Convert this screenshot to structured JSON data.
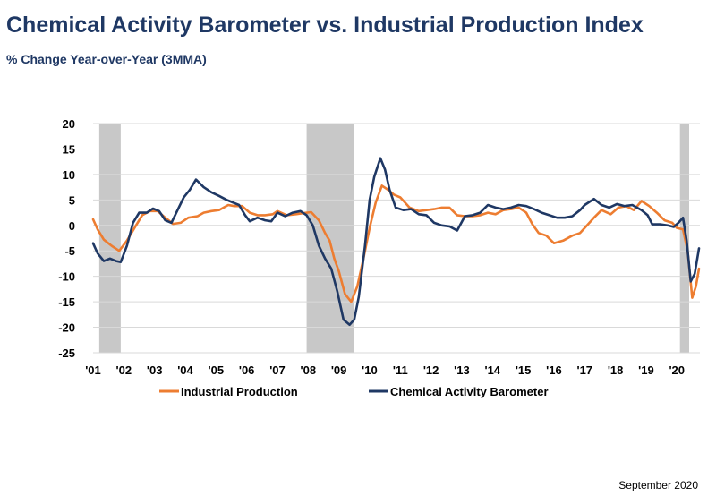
{
  "title": "Chemical Activity Barometer vs. Industrial Production Index",
  "subtitle": "% Change Year-over-Year (3MMA)",
  "footer": "September 2020",
  "colors": {
    "industrial_production": "#ed7d31",
    "cab": "#1f3864",
    "recession": "#c8c8c8",
    "grid": "#d9d9d9"
  },
  "chart_data": {
    "type": "line",
    "title": "Chemical Activity Barometer vs. Industrial Production Index",
    "subtitle": "% Change Year-over-Year (3MMA)",
    "ylim": [
      -25,
      20
    ],
    "xlim": [
      2001.0,
      2020.75
    ],
    "yticks": [
      20,
      15,
      10,
      5,
      0,
      -5,
      -10,
      -15,
      -20,
      -25
    ],
    "xticks": [
      {
        "label": "'01",
        "x": 2001.0
      },
      {
        "label": "'02",
        "x": 2002.0
      },
      {
        "label": "'03",
        "x": 2003.0
      },
      {
        "label": "'04",
        "x": 2004.0
      },
      {
        "label": "'05",
        "x": 2005.0
      },
      {
        "label": "'06",
        "x": 2006.0
      },
      {
        "label": "'07",
        "x": 2007.0
      },
      {
        "label": "'08",
        "x": 2008.0
      },
      {
        "label": "'09",
        "x": 2009.0
      },
      {
        "label": "'10",
        "x": 2010.0
      },
      {
        "label": "'11",
        "x": 2011.0
      },
      {
        "label": "'12",
        "x": 2012.0
      },
      {
        "label": "'13",
        "x": 2013.0
      },
      {
        "label": "'14",
        "x": 2014.0
      },
      {
        "label": "'15",
        "x": 2015.0
      },
      {
        "label": "'16",
        "x": 2016.0
      },
      {
        "label": "'17",
        "x": 2017.0
      },
      {
        "label": "'18",
        "x": 2018.0
      },
      {
        "label": "'19",
        "x": 2019.0
      },
      {
        "label": "'20",
        "x": 2020.0
      }
    ],
    "grid": true,
    "recessions": [
      {
        "start": 2001.2,
        "end": 2001.9
      },
      {
        "start": 2007.95,
        "end": 2009.5
      },
      {
        "start": 2020.1,
        "end": 2020.4
      }
    ],
    "legend_position": "bottom",
    "series": [
      {
        "name": "Industrial Production",
        "color": "#ed7d31",
        "points": [
          [
            2001.0,
            1.2
          ],
          [
            2001.15,
            -0.8
          ],
          [
            2001.35,
            -2.8
          ],
          [
            2001.6,
            -4.0
          ],
          [
            2001.85,
            -5.0
          ],
          [
            2002.1,
            -3.0
          ],
          [
            2002.35,
            -0.5
          ],
          [
            2002.6,
            2.0
          ],
          [
            2002.85,
            2.8
          ],
          [
            2003.1,
            2.8
          ],
          [
            2003.35,
            1.5
          ],
          [
            2003.6,
            0.3
          ],
          [
            2003.85,
            0.5
          ],
          [
            2004.1,
            1.5
          ],
          [
            2004.4,
            1.8
          ],
          [
            2004.6,
            2.5
          ],
          [
            2004.85,
            2.8
          ],
          [
            2005.1,
            3.0
          ],
          [
            2005.4,
            4.0
          ],
          [
            2005.6,
            3.8
          ],
          [
            2005.85,
            3.8
          ],
          [
            2006.1,
            2.5
          ],
          [
            2006.35,
            2.0
          ],
          [
            2006.6,
            2.0
          ],
          [
            2006.85,
            2.2
          ],
          [
            2007.0,
            2.8
          ],
          [
            2007.3,
            2.0
          ],
          [
            2007.6,
            2.2
          ],
          [
            2007.85,
            2.4
          ],
          [
            2008.1,
            2.6
          ],
          [
            2008.35,
            1.0
          ],
          [
            2008.55,
            -1.5
          ],
          [
            2008.7,
            -3.0
          ],
          [
            2008.85,
            -6.5
          ],
          [
            2009.0,
            -9.0
          ],
          [
            2009.2,
            -13.5
          ],
          [
            2009.4,
            -15.0
          ],
          [
            2009.6,
            -12.0
          ],
          [
            2009.8,
            -6.5
          ],
          [
            2010.0,
            -0.5
          ],
          [
            2010.2,
            4.5
          ],
          [
            2010.4,
            7.8
          ],
          [
            2010.6,
            7.0
          ],
          [
            2010.8,
            6.0
          ],
          [
            2011.0,
            5.5
          ],
          [
            2011.3,
            3.5
          ],
          [
            2011.6,
            2.8
          ],
          [
            2011.85,
            3.0
          ],
          [
            2012.1,
            3.2
          ],
          [
            2012.35,
            3.5
          ],
          [
            2012.6,
            3.5
          ],
          [
            2012.85,
            2.0
          ],
          [
            2013.1,
            1.8
          ],
          [
            2013.35,
            1.8
          ],
          [
            2013.6,
            2.0
          ],
          [
            2013.85,
            2.5
          ],
          [
            2014.1,
            2.2
          ],
          [
            2014.35,
            3.0
          ],
          [
            2014.6,
            3.2
          ],
          [
            2014.85,
            3.5
          ],
          [
            2015.1,
            2.5
          ],
          [
            2015.3,
            0.2
          ],
          [
            2015.5,
            -1.5
          ],
          [
            2015.75,
            -2.0
          ],
          [
            2016.0,
            -3.5
          ],
          [
            2016.3,
            -3.0
          ],
          [
            2016.6,
            -2.0
          ],
          [
            2016.85,
            -1.5
          ],
          [
            2017.0,
            -0.5
          ],
          [
            2017.3,
            1.5
          ],
          [
            2017.55,
            3.0
          ],
          [
            2017.85,
            2.2
          ],
          [
            2018.1,
            3.5
          ],
          [
            2018.35,
            3.8
          ],
          [
            2018.6,
            3.0
          ],
          [
            2018.85,
            4.8
          ],
          [
            2019.1,
            3.8
          ],
          [
            2019.35,
            2.5
          ],
          [
            2019.6,
            1.0
          ],
          [
            2019.85,
            0.5
          ],
          [
            2020.0,
            -0.5
          ],
          [
            2020.2,
            -0.8
          ],
          [
            2020.35,
            -5.0
          ],
          [
            2020.5,
            -14.2
          ],
          [
            2020.62,
            -12.0
          ],
          [
            2020.72,
            -8.5
          ]
        ]
      },
      {
        "name": "Chemical Activity Barometer",
        "color": "#1f3864",
        "points": [
          [
            2001.0,
            -3.5
          ],
          [
            2001.15,
            -5.5
          ],
          [
            2001.35,
            -7.0
          ],
          [
            2001.55,
            -6.5
          ],
          [
            2001.75,
            -7.0
          ],
          [
            2001.9,
            -7.2
          ],
          [
            2002.1,
            -4.0
          ],
          [
            2002.3,
            0.5
          ],
          [
            2002.5,
            2.5
          ],
          [
            2002.75,
            2.5
          ],
          [
            2002.95,
            3.3
          ],
          [
            2003.15,
            2.8
          ],
          [
            2003.35,
            1.0
          ],
          [
            2003.55,
            0.5
          ],
          [
            2003.75,
            3.0
          ],
          [
            2003.95,
            5.5
          ],
          [
            2004.15,
            7.0
          ],
          [
            2004.35,
            9.0
          ],
          [
            2004.6,
            7.5
          ],
          [
            2004.85,
            6.5
          ],
          [
            2005.1,
            5.8
          ],
          [
            2005.35,
            5.0
          ],
          [
            2005.55,
            4.5
          ],
          [
            2005.75,
            4.0
          ],
          [
            2005.95,
            2.0
          ],
          [
            2006.1,
            0.8
          ],
          [
            2006.35,
            1.5
          ],
          [
            2006.6,
            1.0
          ],
          [
            2006.8,
            0.8
          ],
          [
            2007.0,
            2.5
          ],
          [
            2007.25,
            1.8
          ],
          [
            2007.5,
            2.5
          ],
          [
            2007.75,
            2.8
          ],
          [
            2007.95,
            2.0
          ],
          [
            2008.15,
            0.0
          ],
          [
            2008.35,
            -4.0
          ],
          [
            2008.55,
            -6.5
          ],
          [
            2008.75,
            -8.5
          ],
          [
            2008.95,
            -13.0
          ],
          [
            2009.15,
            -18.5
          ],
          [
            2009.35,
            -19.5
          ],
          [
            2009.5,
            -18.5
          ],
          [
            2009.65,
            -14.0
          ],
          [
            2009.85,
            -4.0
          ],
          [
            2010.0,
            5.0
          ],
          [
            2010.15,
            9.5
          ],
          [
            2010.35,
            13.2
          ],
          [
            2010.5,
            11.0
          ],
          [
            2010.65,
            7.0
          ],
          [
            2010.85,
            3.5
          ],
          [
            2011.1,
            3.0
          ],
          [
            2011.35,
            3.2
          ],
          [
            2011.6,
            2.2
          ],
          [
            2011.85,
            2.0
          ],
          [
            2012.1,
            0.5
          ],
          [
            2012.35,
            0.0
          ],
          [
            2012.6,
            -0.2
          ],
          [
            2012.85,
            -1.0
          ],
          [
            2013.1,
            1.8
          ],
          [
            2013.35,
            2.0
          ],
          [
            2013.6,
            2.5
          ],
          [
            2013.85,
            4.0
          ],
          [
            2014.1,
            3.5
          ],
          [
            2014.35,
            3.2
          ],
          [
            2014.6,
            3.5
          ],
          [
            2014.85,
            4.0
          ],
          [
            2015.1,
            3.8
          ],
          [
            2015.35,
            3.2
          ],
          [
            2015.6,
            2.5
          ],
          [
            2015.85,
            2.0
          ],
          [
            2016.1,
            1.5
          ],
          [
            2016.35,
            1.5
          ],
          [
            2016.6,
            1.8
          ],
          [
            2016.85,
            3.0
          ],
          [
            2017.0,
            4.0
          ],
          [
            2017.3,
            5.2
          ],
          [
            2017.55,
            4.0
          ],
          [
            2017.8,
            3.5
          ],
          [
            2018.05,
            4.2
          ],
          [
            2018.3,
            3.8
          ],
          [
            2018.55,
            4.0
          ],
          [
            2018.85,
            3.0
          ],
          [
            2019.05,
            2.0
          ],
          [
            2019.2,
            0.2
          ],
          [
            2019.45,
            0.2
          ],
          [
            2019.7,
            0.0
          ],
          [
            2019.9,
            -0.3
          ],
          [
            2020.05,
            0.5
          ],
          [
            2020.2,
            1.5
          ],
          [
            2020.32,
            -3.0
          ],
          [
            2020.45,
            -11.0
          ],
          [
            2020.58,
            -9.5
          ],
          [
            2020.72,
            -4.5
          ]
        ]
      }
    ]
  }
}
